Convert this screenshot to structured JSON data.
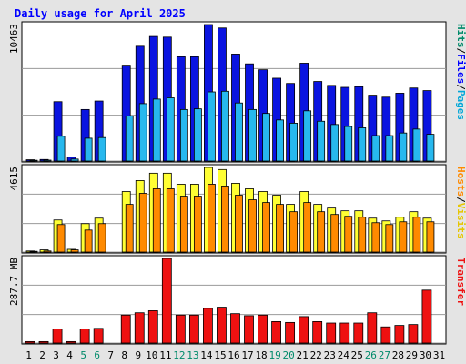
{
  "title": "Daily usage for April 2025",
  "colors": {
    "background": "#e4e4e4",
    "plot_bg": "#ffffff",
    "hits": "#0a14e0",
    "files": "#27b8ee",
    "hosts": "#ff8a00",
    "visits": "#ffff33",
    "transfer": "#ee1111",
    "weekend_label": "#008a6a",
    "weekday_label": "#000000",
    "title": "#0000ff"
  },
  "right_labels": {
    "top": [
      {
        "text": "Hits",
        "color": "#008a6a"
      },
      {
        "text": "/",
        "color": "#000000"
      },
      {
        "text": "Files",
        "color": "#0000ff"
      },
      {
        "text": "/",
        "color": "#000000"
      },
      {
        "text": "Pages",
        "color": "#00a6d8"
      }
    ],
    "middle": [
      {
        "text": "Hosts",
        "color": "#ff8a00"
      },
      {
        "text": "/",
        "color": "#000000"
      },
      {
        "text": "Visits",
        "color": "#e6c600"
      }
    ],
    "bottom": [
      {
        "text": "Transfer",
        "color": "#ee1111"
      }
    ]
  },
  "chart_data": [
    {
      "type": "bar",
      "name": "hits-files-pages",
      "ylabel": "10463",
      "ymax": 10463,
      "categories": [
        "1",
        "2",
        "3",
        "4",
        "5",
        "6",
        "7",
        "8",
        "9",
        "10",
        "11",
        "12",
        "13",
        "14",
        "15",
        "16",
        "17",
        "18",
        "19",
        "20",
        "21",
        "22",
        "23",
        "24",
        "25",
        "26",
        "27",
        "28",
        "29",
        "30",
        "31"
      ],
      "weekend_days": [
        "5",
        "6",
        "12",
        "13",
        "19",
        "20",
        "26",
        "27"
      ],
      "series": [
        {
          "name": "Hits",
          "color": "#0a14e0",
          "values": [
            100,
            120,
            4550,
            300,
            3950,
            4600,
            0,
            7350,
            8800,
            9550,
            9500,
            8000,
            8000,
            10463,
            10200,
            8200,
            7450,
            7000,
            6350,
            5950,
            7500,
            6100,
            5800,
            5650,
            5700,
            5050,
            4900,
            5200,
            5600,
            5400,
            0
          ]
        },
        {
          "name": "Files",
          "color": "#27b8ee",
          "values": [
            60,
            70,
            1900,
            150,
            1750,
            1800,
            0,
            3450,
            4400,
            4750,
            4850,
            3950,
            4000,
            5300,
            5350,
            4450,
            3950,
            3650,
            3150,
            2900,
            3850,
            3050,
            2800,
            2650,
            2550,
            1950,
            1950,
            2150,
            2450,
            2050,
            0
          ]
        }
      ]
    },
    {
      "type": "bar",
      "name": "hosts-visits",
      "ylabel": "4615",
      "ymax": 4615,
      "categories": [
        "1",
        "2",
        "3",
        "4",
        "5",
        "6",
        "7",
        "8",
        "9",
        "10",
        "11",
        "12",
        "13",
        "14",
        "15",
        "16",
        "17",
        "18",
        "19",
        "20",
        "21",
        "22",
        "23",
        "24",
        "25",
        "26",
        "27",
        "28",
        "29",
        "30",
        "31"
      ],
      "series": [
        {
          "name": "Visits",
          "color": "#ffff33",
          "values": [
            60,
            120,
            1750,
            150,
            1550,
            1850,
            0,
            3300,
            3900,
            4300,
            4300,
            3700,
            3700,
            4615,
            4500,
            3750,
            3450,
            3300,
            3100,
            2600,
            3300,
            2600,
            2400,
            2250,
            2250,
            1850,
            1700,
            1900,
            2200,
            1850,
            0
          ]
        },
        {
          "name": "Hosts",
          "color": "#ff8a00",
          "values": [
            40,
            60,
            1500,
            120,
            1200,
            1550,
            0,
            2600,
            3200,
            3450,
            3450,
            3050,
            3050,
            3700,
            3600,
            3100,
            2850,
            2700,
            2600,
            2200,
            2700,
            2200,
            2050,
            1950,
            1900,
            1600,
            1500,
            1650,
            1900,
            1650,
            0
          ]
        }
      ]
    },
    {
      "type": "bar",
      "name": "transfer",
      "ylabel": "287.7 MB",
      "ymax": 287.7,
      "unit": "MB",
      "categories": [
        "1",
        "2",
        "3",
        "4",
        "5",
        "6",
        "7",
        "8",
        "9",
        "10",
        "11",
        "12",
        "13",
        "14",
        "15",
        "16",
        "17",
        "18",
        "19",
        "20",
        "21",
        "22",
        "23",
        "24",
        "25",
        "26",
        "27",
        "28",
        "29",
        "30",
        "31"
      ],
      "series": [
        {
          "name": "Transfer",
          "color": "#ee1111",
          "values": [
            5,
            5,
            48,
            5,
            48,
            50,
            0,
            95,
            103,
            110,
            287.7,
            95,
            95,
            118,
            122,
            100,
            93,
            95,
            73,
            70,
            90,
            73,
            68,
            68,
            68,
            103,
            55,
            60,
            63,
            180,
            0
          ]
        }
      ]
    }
  ]
}
